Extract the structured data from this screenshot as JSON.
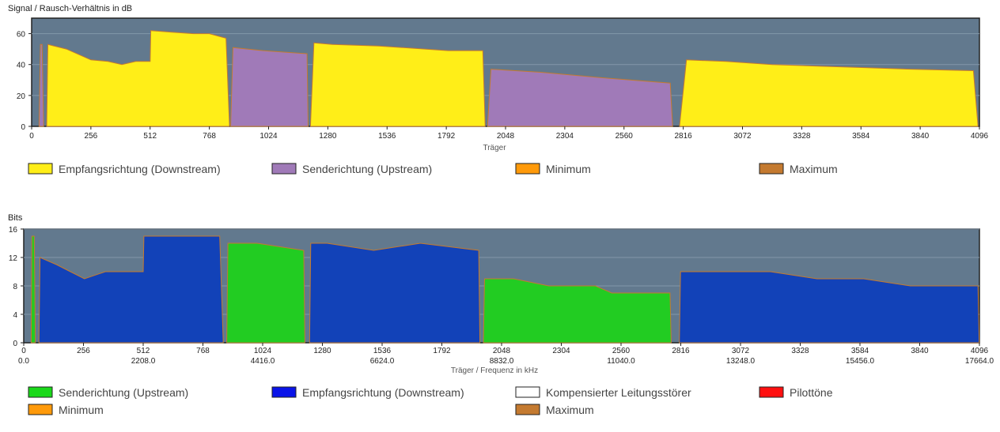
{
  "chart_data": [
    {
      "type": "area",
      "ylabel": "Signal / Rausch-Verhältnis in dB",
      "xlabel": "Träger",
      "xlim": [
        0,
        4096
      ],
      "ylim": [
        0,
        70
      ],
      "yticks": [
        0,
        20,
        40,
        60
      ],
      "xticks": [
        "0",
        "256",
        "512",
        "768",
        "1024",
        "1280",
        "1536",
        "1792",
        "2048",
        "2304",
        "2560",
        "2816",
        "3072",
        "3328",
        "3584",
        "3840",
        "4096"
      ],
      "series": [
        {
          "name": "Empfangsrichtung (Downstream)",
          "color": "#ffee18",
          "segments": [
            [
              [
                65,
                0
              ],
              [
                70,
                53
              ],
              [
                150,
                50
              ],
              [
                256,
                43
              ],
              [
                330,
                42
              ],
              [
                390,
                40
              ],
              [
                450,
                42
              ],
              [
                500,
                42
              ],
              [
                512,
                42
              ],
              [
                515,
                62
              ],
              [
                600,
                61
              ],
              [
                700,
                60
              ],
              [
                768,
                60
              ],
              [
                840,
                57
              ],
              [
                855,
                0
              ]
            ],
            [
              [
                1205,
                0
              ],
              [
                1220,
                54
              ],
              [
                1300,
                53
              ],
              [
                1500,
                52
              ],
              [
                1700,
                50
              ],
              [
                1800,
                49
              ],
              [
                1950,
                49
              ],
              [
                1960,
                0
              ]
            ],
            [
              [
                2800,
                0
              ],
              [
                2830,
                43
              ],
              [
                3000,
                42
              ],
              [
                3200,
                40
              ],
              [
                3400,
                39
              ],
              [
                3600,
                38
              ],
              [
                3800,
                37
              ],
              [
                4070,
                36
              ],
              [
                4090,
                0
              ]
            ]
          ]
        },
        {
          "name": "Senderichtung (Upstream)",
          "color": "#a07ab8",
          "segments": [
            [
              [
                32,
                0
              ],
              [
                38,
                53
              ],
              [
                45,
                53
              ],
              [
                52,
                0
              ]
            ],
            [
              [
                860,
                0
              ],
              [
                870,
                51
              ],
              [
                1000,
                49
              ],
              [
                1190,
                47
              ],
              [
                1195,
                0
              ]
            ],
            [
              [
                1970,
                0
              ],
              [
                1985,
                37
              ],
              [
                2200,
                35
              ],
              [
                2500,
                31
              ],
              [
                2760,
                28
              ],
              [
                2770,
                0
              ]
            ]
          ]
        }
      ],
      "legend": [
        {
          "label": "Empfangsrichtung (Downstream)",
          "color": "#ffee18"
        },
        {
          "label": "Senderichtung (Upstream)",
          "color": "#a07ab8"
        },
        {
          "label": "Minimum",
          "color": "#ff9a0a"
        },
        {
          "label": "Maximum",
          "color": "#c47a30"
        }
      ]
    },
    {
      "type": "area",
      "ylabel": "Bits",
      "xlabel": "Träger / Frequenz in kHz",
      "xlim": [
        0,
        4096
      ],
      "ylim": [
        0,
        16
      ],
      "yticks": [
        0,
        4,
        8,
        12,
        16
      ],
      "xticks": [
        "0",
        "256",
        "512",
        "768",
        "1024",
        "1280",
        "1536",
        "1792",
        "2048",
        "2304",
        "2560",
        "2816",
        "3072",
        "3328",
        "3584",
        "3840",
        "4096"
      ],
      "xticks2": [
        {
          "at": 0,
          "label": "0.0"
        },
        {
          "at": 512,
          "label": "2208.0"
        },
        {
          "at": 1024,
          "label": "4416.0"
        },
        {
          "at": 1536,
          "label": "6624.0"
        },
        {
          "at": 2048,
          "label": "8832.0"
        },
        {
          "at": 2560,
          "label": "11040.0"
        },
        {
          "at": 3072,
          "label": "13248.0"
        },
        {
          "at": 3584,
          "label": "15456.0"
        },
        {
          "at": 4096,
          "label": "17664.0"
        }
      ],
      "series": [
        {
          "name": "Senderichtung (Upstream)",
          "color": "#22cc22",
          "segments": [
            [
              [
                32,
                0
              ],
              [
                35,
                15
              ],
              [
                45,
                15
              ],
              [
                50,
                0
              ]
            ],
            [
              [
                870,
                0
              ],
              [
                875,
                14
              ],
              [
                1000,
                14
              ],
              [
                1200,
                13
              ],
              [
                1205,
                0
              ]
            ],
            [
              [
                1970,
                0
              ],
              [
                1975,
                9
              ],
              [
                2100,
                9
              ],
              [
                2250,
                8
              ],
              [
                2450,
                8
              ],
              [
                2520,
                7
              ],
              [
                2770,
                7
              ],
              [
                2775,
                0
              ]
            ]
          ]
        },
        {
          "name": "Empfangsrichtung (Downstream)",
          "color": "#1242b8",
          "segments": [
            [
              [
                65,
                0
              ],
              [
                70,
                12
              ],
              [
                140,
                11
              ],
              [
                200,
                10
              ],
              [
                260,
                9
              ],
              [
                350,
                10
              ],
              [
                512,
                10
              ],
              [
                515,
                15
              ],
              [
                768,
                15
              ],
              [
                840,
                15
              ],
              [
                855,
                0
              ]
            ],
            [
              [
                1225,
                0
              ],
              [
                1230,
                14
              ],
              [
                1300,
                14
              ],
              [
                1500,
                13
              ],
              [
                1700,
                14
              ],
              [
                1950,
                13
              ],
              [
                1955,
                0
              ]
            ],
            [
              [
                2810,
                0
              ],
              [
                2815,
                10
              ],
              [
                3000,
                10
              ],
              [
                3200,
                10
              ],
              [
                3400,
                9
              ],
              [
                3600,
                9
              ],
              [
                3800,
                8
              ],
              [
                4090,
                8
              ],
              [
                4095,
                0
              ]
            ]
          ]
        }
      ],
      "legend": [
        {
          "label": "Senderichtung (Upstream)",
          "color": "#1ad81a"
        },
        {
          "label": "Empfangsrichtung (Downstream)",
          "color": "#0a14e8"
        },
        {
          "label": "Kompensierter Leitungsstörer",
          "color": "#ffffff"
        },
        {
          "label": "Pilottöne",
          "color": "#ff1010"
        },
        {
          "label": "Minimum",
          "color": "#ff9a0a"
        },
        {
          "label": "Maximum",
          "color": "#c47a30"
        }
      ]
    }
  ]
}
